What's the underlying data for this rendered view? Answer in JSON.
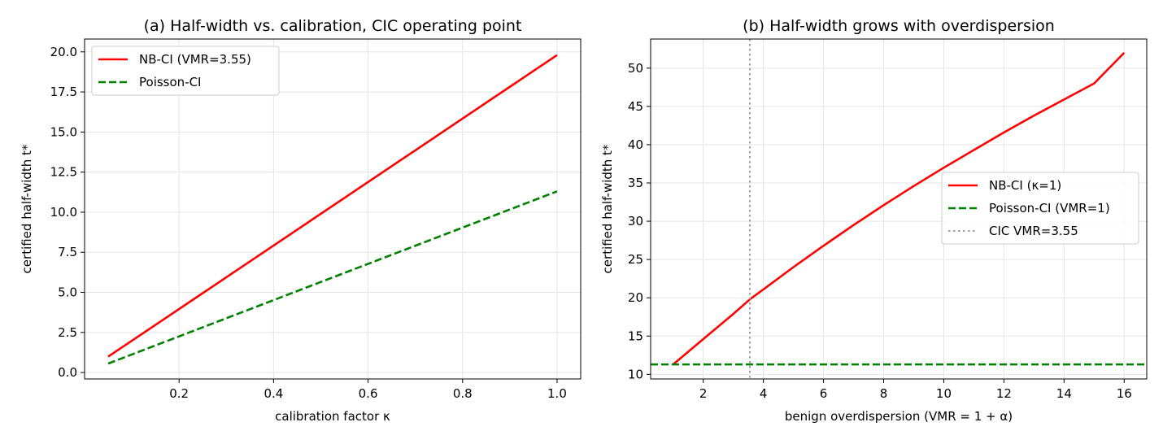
{
  "chart_data": [
    {
      "type": "line",
      "title": "(a) Half-width vs. calibration, CIC operating point",
      "xlabel": "calibration factor κ",
      "ylabel": "certified half-width t*",
      "xlim": [
        0.0,
        1.05
      ],
      "ylim": [
        -0.4,
        20.8
      ],
      "xticks": [
        0.2,
        0.4,
        0.6,
        0.8,
        1.0
      ],
      "xtick_labels": [
        "0.2",
        "0.4",
        "0.6",
        "0.8",
        "1.0"
      ],
      "yticks": [
        0.0,
        2.5,
        5.0,
        7.5,
        10.0,
        12.5,
        15.0,
        17.5,
        20.0
      ],
      "ytick_labels": [
        "0.0",
        "2.5",
        "5.0",
        "7.5",
        "10.0",
        "12.5",
        "15.0",
        "17.5",
        "20.0"
      ],
      "grid": true,
      "legend_position": "upper-left",
      "series": [
        {
          "name": "NB-CI (VMR=3.55)",
          "color": "#ff0000",
          "dash": "solid",
          "x": [
            0.05,
            1.0
          ],
          "y": [
            0.99,
            19.8
          ]
        },
        {
          "name": "Poisson-CI",
          "color": "#008000",
          "dash": "dashed",
          "x": [
            0.05,
            1.0
          ],
          "y": [
            0.56,
            11.3
          ]
        }
      ]
    },
    {
      "type": "line",
      "title": "(b) Half-width grows with overdispersion",
      "xlabel": "benign overdispersion (VMR = 1 + α)",
      "ylabel": "certified half-width t*",
      "xlim": [
        0.25,
        16.75
      ],
      "ylim": [
        9.4,
        53.8
      ],
      "xticks": [
        2,
        4,
        6,
        8,
        10,
        12,
        14,
        16
      ],
      "xtick_labels": [
        "2",
        "4",
        "6",
        "8",
        "10",
        "12",
        "14",
        "16"
      ],
      "yticks": [
        10,
        15,
        20,
        25,
        30,
        35,
        40,
        45,
        50
      ],
      "ytick_labels": [
        "10",
        "15",
        "20",
        "25",
        "30",
        "35",
        "40",
        "45",
        "50"
      ],
      "grid": true,
      "legend_position": "center-right",
      "series": [
        {
          "name": "NB-CI (κ=1)",
          "color": "#ff0000",
          "dash": "solid",
          "x": [
            1,
            2,
            3,
            3.55,
            4,
            5,
            6,
            7,
            8,
            9,
            10,
            11,
            12,
            13,
            14,
            15,
            16
          ],
          "y": [
            11.3,
            14.6,
            17.9,
            19.8,
            21.1,
            24.0,
            26.8,
            29.5,
            32.1,
            34.6,
            37.0,
            39.3,
            41.6,
            43.8,
            45.9,
            48.0,
            52.0
          ]
        },
        {
          "name": "Poisson-CI (VMR=1)",
          "color": "#008000",
          "dash": "dashed",
          "hline": 11.3
        },
        {
          "name": "CIC VMR=3.55",
          "color": "#a0a0a0",
          "dash": "dotted",
          "vline": 3.55
        }
      ]
    }
  ]
}
